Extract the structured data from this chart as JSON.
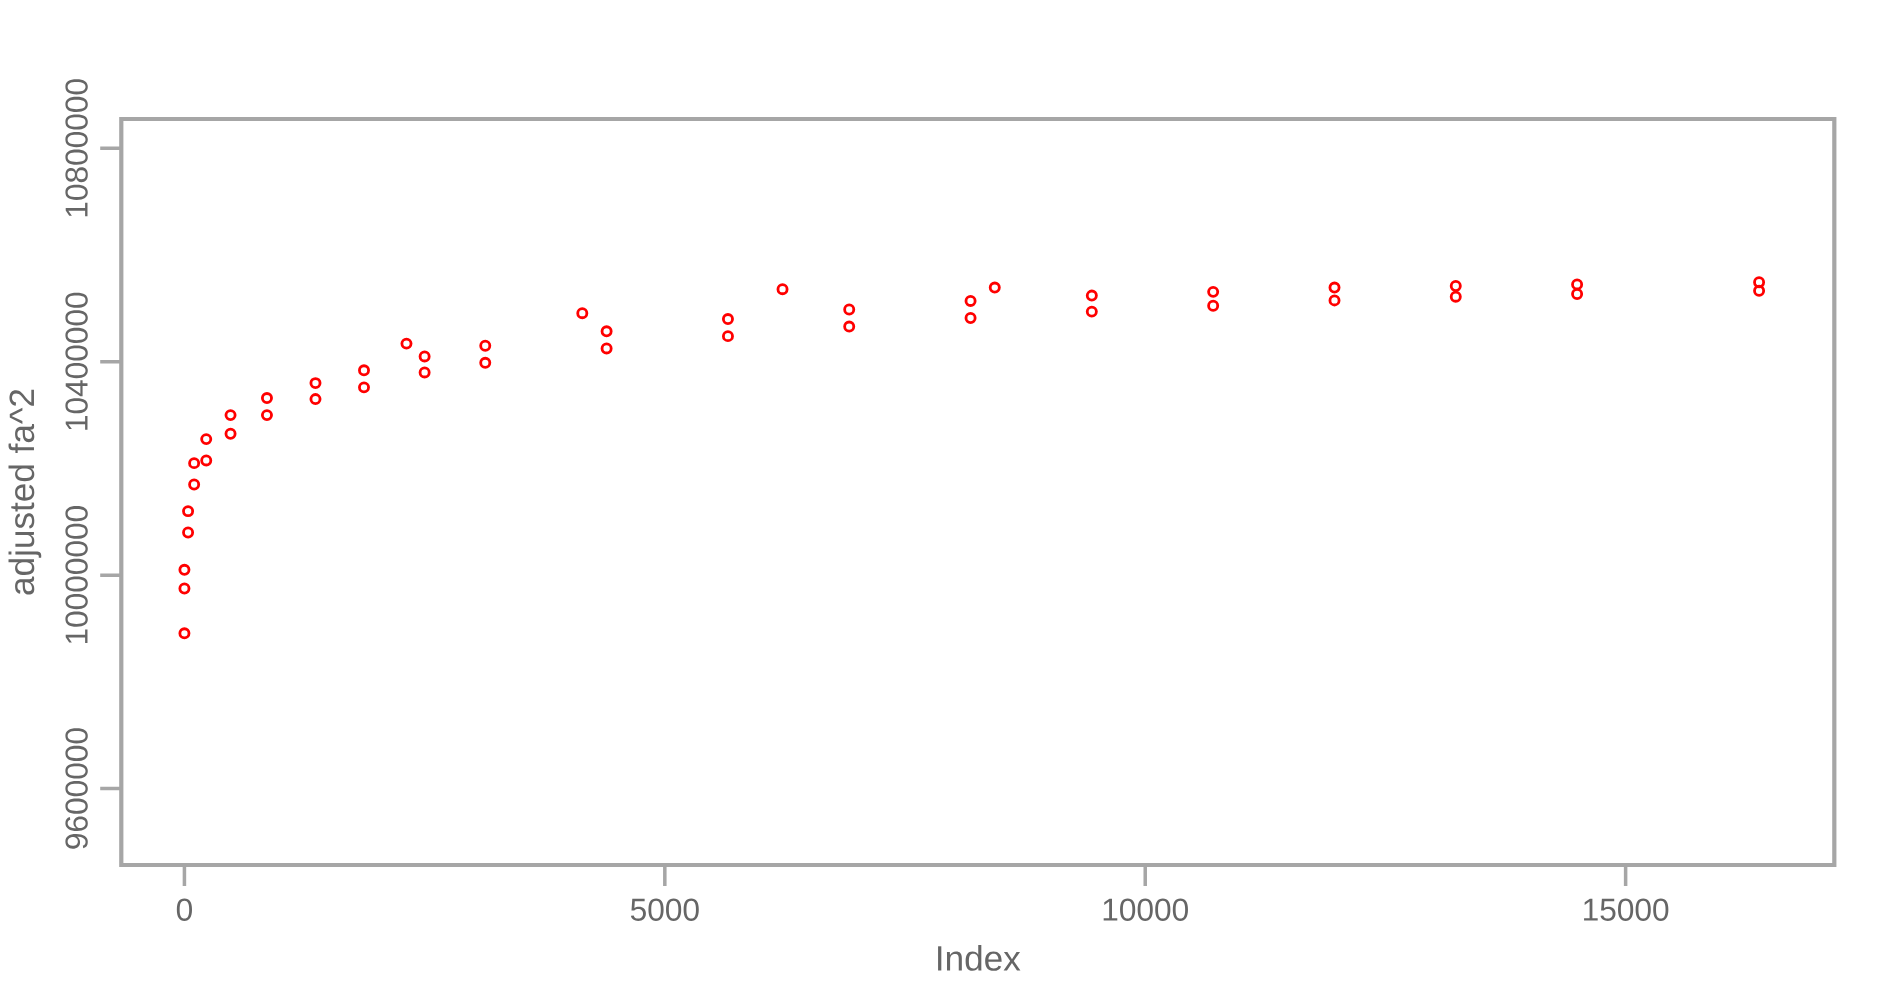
{
  "chart_data": {
    "type": "scatter",
    "xlabel": "Index",
    "ylabel": "adjusted fa^2",
    "x": [
      0,
      0,
      0,
      38,
      38,
      101,
      101,
      227,
      227,
      480,
      480,
      859,
      859,
      1364,
      1364,
      1869,
      1869,
      2311,
      2500,
      2500,
      3131,
      3131,
      4141,
      4394,
      4394,
      5657,
      5657,
      6225,
      6919,
      6919,
      8182,
      8182,
      8434,
      9444,
      9444,
      10707,
      10707,
      11970,
      11970,
      13232,
      13232,
      14495,
      14495,
      16389,
      16389
    ],
    "values": [
      9891000,
      9975000,
      10010000,
      10080000,
      10120000,
      10170000,
      10210000,
      10215000,
      10255000,
      10265000,
      10300000,
      10300000,
      10332000,
      10330000,
      10360000,
      10352000,
      10384000,
      10434000,
      10380000,
      10410000,
      10398000,
      10430000,
      10491000,
      10425000,
      10457000,
      10448000,
      10480000,
      10536000,
      10466000,
      10498000,
      10482000,
      10514000,
      10539000,
      10494000,
      10524000,
      10505000,
      10531000,
      10515000,
      10539000,
      10522000,
      10542000,
      10527000,
      10545000,
      10533000,
      10549000
    ],
    "color": "#ff0000",
    "marker": "circle",
    "grid": false,
    "xlim": [
      -657,
      17172
    ],
    "ylim": [
      9456800,
      10855000
    ],
    "xticks": [
      0,
      5000,
      10000,
      15000
    ],
    "yticks": [
      9600000,
      10000000,
      10400000,
      10800000
    ]
  }
}
